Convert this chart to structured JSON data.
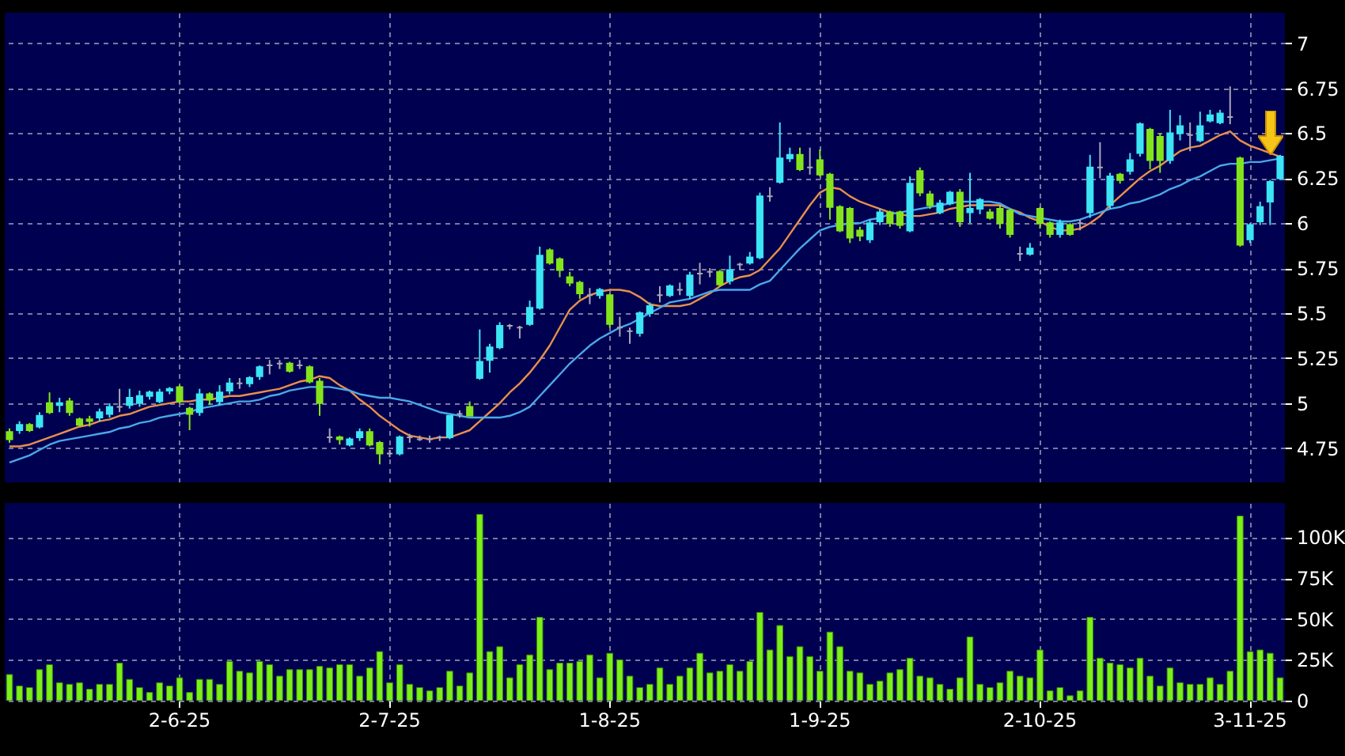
{
  "chart_data": [
    {
      "type": "candlestick",
      "categories": [
        null,
        null,
        null,
        null,
        null,
        null,
        null,
        null,
        null,
        null,
        null,
        null,
        null,
        null,
        null,
        null,
        null,
        null,
        null,
        null,
        null,
        null,
        null,
        null,
        null,
        null,
        null,
        null,
        null,
        null,
        null,
        null,
        null,
        null,
        null,
        null,
        null,
        null,
        null,
        null,
        null,
        null,
        null,
        null,
        null,
        null,
        null,
        null,
        null,
        null,
        null,
        null,
        null,
        null,
        null,
        null,
        null,
        null,
        null,
        null,
        null,
        null,
        null,
        null,
        null,
        null,
        null,
        null,
        null,
        null,
        null,
        null,
        null,
        null,
        null,
        null,
        null,
        null,
        null,
        null,
        null,
        null,
        null,
        null,
        null,
        null,
        null,
        null,
        null,
        null,
        null,
        null,
        null,
        null,
        null,
        null,
        null,
        null,
        null,
        null,
        null,
        null,
        null,
        null,
        null,
        null,
        null,
        null,
        null,
        null,
        null,
        null,
        null,
        null,
        null,
        null,
        null,
        null,
        null,
        null,
        null,
        null,
        null,
        null,
        null,
        null,
        null,
        null
      ],
      "ohlc": [
        [
          4.84,
          4.86,
          4.78,
          4.8
        ],
        [
          4.85,
          4.9,
          4.83,
          4.88
        ],
        [
          4.88,
          4.89,
          4.84,
          4.85
        ],
        [
          4.87,
          4.95,
          4.86,
          4.93
        ],
        [
          5,
          5.06,
          4.94,
          4.95
        ],
        [
          4.99,
          5.03,
          4.95,
          5
        ],
        [
          5.01,
          5.03,
          4.93,
          4.95
        ],
        [
          4.91,
          4.92,
          4.87,
          4.88
        ],
        [
          4.91,
          4.93,
          4.87,
          4.9
        ],
        [
          4.92,
          4.97,
          4.9,
          4.95
        ],
        [
          4.94,
          5,
          4.92,
          4.98
        ],
        [
          4.98,
          5.08,
          4.95,
          4.98
        ],
        [
          4.99,
          5.08,
          4.97,
          5.03
        ],
        [
          5,
          5.07,
          4.98,
          5.04
        ],
        [
          5.04,
          5.07,
          5.02,
          5.06
        ],
        [
          5.01,
          5.08,
          5,
          5.06
        ],
        [
          5.07,
          5.09,
          5.05,
          5.08
        ],
        [
          5.09,
          5.1,
          5,
          5.01
        ],
        [
          4.97,
          4.98,
          4.85,
          4.94
        ],
        [
          4.95,
          5.08,
          4.93,
          5.05
        ],
        [
          5.05,
          5.06,
          4.99,
          5.02
        ],
        [
          5.01,
          5.1,
          4.99,
          5.06
        ],
        [
          5.07,
          5.14,
          5.05,
          5.11
        ],
        [
          5.11,
          5.14,
          5.08,
          5.11
        ],
        [
          5.11,
          5.15,
          5.09,
          5.14
        ],
        [
          5.15,
          5.21,
          5.13,
          5.2
        ],
        [
          5.21,
          5.24,
          5.16,
          5.21
        ],
        [
          5.22,
          5.24,
          5.19,
          5.22
        ],
        [
          5.22,
          5.23,
          5.17,
          5.18
        ],
        [
          5.21,
          5.24,
          5.19,
          5.21
        ],
        [
          5.2,
          5.21,
          5.11,
          5.12
        ],
        [
          5.12,
          5.14,
          4.93,
          5
        ],
        [
          4.81,
          4.86,
          4.78,
          4.81
        ],
        [
          4.81,
          4.82,
          4.77,
          4.8
        ],
        [
          4.77,
          4.81,
          4.76,
          4.8
        ],
        [
          4.81,
          4.86,
          4.79,
          4.84
        ],
        [
          4.84,
          4.86,
          4.76,
          4.77
        ],
        [
          4.78,
          4.79,
          4.66,
          4.72
        ],
        [
          4.72,
          4.74,
          4.7,
          4.72
        ],
        [
          4.72,
          4.82,
          4.71,
          4.81
        ],
        [
          4.81,
          4.83,
          4.78,
          4.81
        ],
        [
          4.8,
          4.82,
          4.79,
          4.8
        ],
        [
          4.8,
          4.82,
          4.78,
          4.8
        ],
        [
          4.81,
          4.82,
          4.79,
          4.81
        ],
        [
          4.81,
          4.93,
          4.8,
          4.93
        ],
        [
          4.94,
          4.96,
          4.92,
          4.94
        ],
        [
          4.98,
          5.01,
          4.93,
          4.93
        ],
        [
          5.14,
          5.41,
          5.13,
          5.23
        ],
        [
          5.24,
          5.33,
          5.17,
          5.31
        ],
        [
          5.31,
          5.45,
          5.3,
          5.43
        ],
        [
          5.43,
          5.44,
          5.41,
          5.43
        ],
        [
          5.42,
          5.43,
          5.36,
          5.42
        ],
        [
          5.44,
          5.57,
          5.43,
          5.53
        ],
        [
          5.53,
          5.87,
          5.52,
          5.82
        ],
        [
          5.85,
          5.86,
          5.77,
          5.78
        ],
        [
          5.8,
          5.81,
          5.7,
          5.74
        ],
        [
          5.7,
          5.73,
          5.65,
          5.67
        ],
        [
          5.67,
          5.68,
          5.58,
          5.61
        ],
        [
          5.6,
          5.64,
          5.55,
          5.6
        ],
        [
          5.6,
          5.64,
          5.58,
          5.63
        ],
        [
          5.6,
          5.61,
          5.42,
          5.44
        ],
        [
          5.42,
          5.48,
          5.37,
          5.42
        ],
        [
          5.4,
          5.42,
          5.33,
          5.4
        ],
        [
          5.39,
          5.51,
          5.37,
          5.5
        ],
        [
          5.5,
          5.56,
          5.48,
          5.54
        ],
        [
          5.6,
          5.65,
          5.56,
          5.6
        ],
        [
          5.6,
          5.66,
          5.59,
          5.65
        ],
        [
          5.63,
          5.67,
          5.6,
          5.63
        ],
        [
          5.6,
          5.73,
          5.58,
          5.71
        ],
        [
          5.72,
          5.78,
          5.66,
          5.72
        ],
        [
          5.73,
          5.75,
          5.7,
          5.73
        ],
        [
          5.73,
          5.74,
          5.65,
          5.66
        ],
        [
          5.68,
          5.82,
          5.66,
          5.74
        ],
        [
          5.77,
          5.78,
          5.74,
          5.77
        ],
        [
          5.78,
          5.84,
          5.77,
          5.81
        ],
        [
          5.81,
          6.17,
          5.8,
          6.15
        ],
        [
          6.15,
          6.2,
          6.12,
          6.15
        ],
        [
          6.23,
          6.56,
          6.22,
          6.36
        ],
        [
          6.36,
          6.42,
          6.34,
          6.38
        ],
        [
          6.38,
          6.42,
          6.29,
          6.3
        ],
        [
          6.31,
          6.42,
          6.27,
          6.31
        ],
        [
          6.35,
          6.41,
          6.26,
          6.27
        ],
        [
          6.27,
          6.28,
          6.02,
          6.09
        ],
        [
          6.09,
          6.1,
          5.95,
          5.96
        ],
        [
          6.08,
          6.09,
          5.89,
          5.92
        ],
        [
          5.96,
          5.98,
          5.9,
          5.93
        ],
        [
          5.91,
          6.02,
          5.89,
          6
        ],
        [
          6.01,
          6.08,
          5.99,
          6.06
        ],
        [
          6.06,
          6.07,
          5.98,
          6
        ],
        [
          6.06,
          6.07,
          5.97,
          5.99
        ],
        [
          5.96,
          6.26,
          5.95,
          6.22
        ],
        [
          6.29,
          6.31,
          6.15,
          6.17
        ],
        [
          6.16,
          6.18,
          6.08,
          6.1
        ],
        [
          6.06,
          6.13,
          6.05,
          6.11
        ],
        [
          6.11,
          6.18,
          6.1,
          6.17
        ],
        [
          6.17,
          6.19,
          5.98,
          6.01
        ],
        [
          6.06,
          6.28,
          6,
          6.08
        ],
        [
          6.08,
          6.14,
          6.05,
          6.13
        ],
        [
          6.06,
          6.08,
          6.02,
          6.03
        ],
        [
          6.08,
          6.1,
          5.97,
          6
        ],
        [
          6.07,
          6.08,
          5.92,
          5.94
        ],
        [
          5.83,
          5.87,
          5.79,
          5.83
        ],
        [
          5.83,
          5.89,
          5.82,
          5.86
        ],
        [
          6.08,
          6.09,
          5.97,
          6
        ],
        [
          6,
          6.01,
          5.92,
          5.94
        ],
        [
          5.94,
          6.02,
          5.92,
          6
        ],
        [
          5.99,
          6,
          5.93,
          5.94
        ],
        [
          6,
          6.02,
          5.96,
          6
        ],
        [
          6.06,
          6.38,
          6.03,
          6.31
        ],
        [
          6.31,
          6.45,
          6.25,
          6.31
        ],
        [
          6.1,
          6.28,
          6.08,
          6.26
        ],
        [
          6.27,
          6.28,
          6.22,
          6.24
        ],
        [
          6.29,
          6.39,
          6.27,
          6.35
        ],
        [
          6.39,
          6.56,
          6.37,
          6.55
        ],
        [
          6.52,
          6.53,
          6.3,
          6.35
        ],
        [
          6.48,
          6.5,
          6.28,
          6.35
        ],
        [
          6.35,
          6.63,
          6.33,
          6.5
        ],
        [
          6.5,
          6.6,
          6.46,
          6.54
        ],
        [
          6.49,
          6.56,
          6.4,
          6.49
        ],
        [
          6.46,
          6.62,
          6.45,
          6.54
        ],
        [
          6.57,
          6.63,
          6.56,
          6.6
        ],
        [
          6.56,
          6.63,
          6.55,
          6.61
        ],
        [
          6.59,
          6.76,
          6.55,
          6.59
        ],
        [
          6.36,
          6.37,
          5.87,
          5.88
        ],
        [
          5.91,
          6,
          5.89,
          5.99
        ],
        [
          6.01,
          6.12,
          5.99,
          6.09
        ],
        [
          6.12,
          6.24,
          5.99,
          6.23
        ],
        [
          6.25,
          6.38,
          6.24,
          6.37
        ]
      ],
      "colors": [
        "#84e41c",
        "#3ce4f4",
        "#84e41c",
        "#3ce4f4",
        "#84e41c",
        "#3ce4f4",
        "#84e41c",
        "#84e41c",
        "#84e41c",
        "#3ce4f4",
        "#3ce4f4",
        "#a8a8b8",
        "#3ce4f4",
        "#3ce4f4",
        "#3ce4f4",
        "#3ce4f4",
        "#3ce4f4",
        "#84e41c",
        "#84e41c",
        "#3ce4f4",
        "#84e41c",
        "#3ce4f4",
        "#3ce4f4",
        "#a8a8b8",
        "#3ce4f4",
        "#3ce4f4",
        "#a8a8b8",
        "#a8a8b8",
        "#84e41c",
        "#a8a8b8",
        "#84e41c",
        "#84e41c",
        "#a8a8b8",
        "#84e41c",
        "#3ce4f4",
        "#3ce4f4",
        "#84e41c",
        "#84e41c",
        "#a8a8b8",
        "#3ce4f4",
        "#a8a8b8",
        "#a8a8b8",
        "#a8a8b8",
        "#a8a8b8",
        "#3ce4f4",
        "#a8a8b8",
        "#84e41c",
        "#3ce4f4",
        "#3ce4f4",
        "#3ce4f4",
        "#a8a8b8",
        "#a8a8b8",
        "#3ce4f4",
        "#3ce4f4",
        "#84e41c",
        "#84e41c",
        "#84e41c",
        "#84e41c",
        "#a8a8b8",
        "#3ce4f4",
        "#84e41c",
        "#a8a8b8",
        "#a8a8b8",
        "#3ce4f4",
        "#3ce4f4",
        "#a8a8b8",
        "#3ce4f4",
        "#a8a8b8",
        "#3ce4f4",
        "#a8a8b8",
        "#a8a8b8",
        "#84e41c",
        "#3ce4f4",
        "#a8a8b8",
        "#3ce4f4",
        "#3ce4f4",
        "#a8a8b8",
        "#3ce4f4",
        "#3ce4f4",
        "#84e41c",
        "#a8a8b8",
        "#84e41c",
        "#84e41c",
        "#84e41c",
        "#84e41c",
        "#84e41c",
        "#3ce4f4",
        "#3ce4f4",
        "#84e41c",
        "#84e41c",
        "#3ce4f4",
        "#84e41c",
        "#84e41c",
        "#3ce4f4",
        "#3ce4f4",
        "#84e41c",
        "#3ce4f4",
        "#3ce4f4",
        "#84e41c",
        "#84e41c",
        "#84e41c",
        "#a8a8b8",
        "#3ce4f4",
        "#84e41c",
        "#84e41c",
        "#3ce4f4",
        "#84e41c",
        "#a8a8b8",
        "#3ce4f4",
        "#a8a8b8",
        "#3ce4f4",
        "#84e41c",
        "#3ce4f4",
        "#3ce4f4",
        "#84e41c",
        "#84e41c",
        "#3ce4f4",
        "#3ce4f4",
        "#a8a8b8",
        "#3ce4f4",
        "#3ce4f4",
        "#3ce4f4",
        "#a8a8b8",
        "#84e41c",
        "#3ce4f4",
        "#3ce4f4",
        "#3ce4f4",
        "#3ce4f4"
      ],
      "series": [
        {
          "type": "line",
          "color": "#e8904a",
          "values": [
            4.76,
            4.76,
            4.77,
            4.79,
            4.81,
            4.83,
            4.85,
            4.87,
            4.88,
            4.9,
            4.91,
            4.93,
            4.94,
            4.96,
            4.98,
            4.99,
            5,
            5.01,
            5.01,
            5.02,
            5.02,
            5.03,
            5.04,
            5.04,
            5.05,
            5.06,
            5.07,
            5.08,
            5.1,
            5.12,
            5.13,
            5.15,
            5.14,
            5.1,
            5.07,
            5.02,
            4.98,
            4.93,
            4.89,
            4.85,
            4.82,
            4.81,
            4.8,
            4.81,
            4.81,
            4.83,
            4.85,
            4.9,
            4.95,
            5,
            5.06,
            5.11,
            5.17,
            5.24,
            5.32,
            5.42,
            5.52,
            5.57,
            5.6,
            5.62,
            5.63,
            5.63,
            5.62,
            5.59,
            5.55,
            5.54,
            5.54,
            5.54,
            5.55,
            5.58,
            5.61,
            5.65,
            5.68,
            5.7,
            5.71,
            5.74,
            5.8,
            5.86,
            5.94,
            6.02,
            6.1,
            6.17,
            6.2,
            6.19,
            6.15,
            6.12,
            6.1,
            6.08,
            6.06,
            6.05,
            6.04,
            6.04,
            6.05,
            6.06,
            6.08,
            6.09,
            6.1,
            6.1,
            6.1,
            6.1,
            6.08,
            6.06,
            6.03,
            6.01,
            5.98,
            5.96,
            5.96,
            5.97,
            6,
            6.04,
            6.1,
            6.15,
            6.2,
            6.25,
            6.29,
            6.32,
            6.36,
            6.4,
            6.42,
            6.43,
            6.46,
            6.49,
            6.51,
            6.46,
            6.43,
            6.41,
            6.39,
            6.37
          ]
        },
        {
          "type": "line",
          "color": "#4aa8e8",
          "values": [
            4.67,
            4.69,
            4.71,
            4.74,
            4.77,
            4.79,
            4.8,
            4.81,
            4.82,
            4.83,
            4.84,
            4.86,
            4.87,
            4.89,
            4.9,
            4.92,
            4.93,
            4.94,
            4.95,
            4.97,
            4.98,
            4.99,
            5,
            5.01,
            5.01,
            5.02,
            5.04,
            5.05,
            5.07,
            5.08,
            5.09,
            5.09,
            5.09,
            5.08,
            5.07,
            5.05,
            5.04,
            5.03,
            5.03,
            5.02,
            5.01,
            4.99,
            4.97,
            4.95,
            4.94,
            4.93,
            4.92,
            4.92,
            4.92,
            4.92,
            4.93,
            4.95,
            4.98,
            5.04,
            5.1,
            5.16,
            5.22,
            5.27,
            5.32,
            5.36,
            5.39,
            5.42,
            5.44,
            5.47,
            5.5,
            5.53,
            5.56,
            5.57,
            5.58,
            5.6,
            5.62,
            5.63,
            5.63,
            5.63,
            5.63,
            5.66,
            5.68,
            5.74,
            5.8,
            5.86,
            5.91,
            5.96,
            5.98,
            5.99,
            6,
            6,
            6.02,
            6.03,
            6.05,
            6.06,
            6.07,
            6.08,
            6.09,
            6.1,
            6.11,
            6.12,
            6.12,
            6.12,
            6.12,
            6.11,
            6.08,
            6.05,
            6.04,
            6.03,
            6.02,
            6.01,
            6.01,
            6.02,
            6.04,
            6.06,
            6.08,
            6.09,
            6.11,
            6.12,
            6.14,
            6.16,
            6.19,
            6.21,
            6.24,
            6.26,
            6.29,
            6.32,
            6.33,
            6.33,
            6.34,
            6.34,
            6.35,
            6.36
          ]
        }
      ],
      "ylim": [
        4.56,
        7.17
      ],
      "yticks": [
        4.75,
        5,
        5.25,
        5.5,
        5.75,
        6,
        6.25,
        6.5,
        6.75,
        7
      ],
      "grid": true,
      "tick_labels": "y"
    },
    {
      "type": "bar",
      "categories": [
        null,
        null,
        null,
        null,
        null,
        null,
        null,
        null,
        null,
        null,
        null,
        null,
        null,
        null,
        null,
        null,
        null,
        "2-6-25",
        null,
        null,
        null,
        null,
        null,
        null,
        null,
        null,
        null,
        null,
        null,
        null,
        null,
        null,
        null,
        null,
        null,
        null,
        null,
        null,
        "2-7-25",
        null,
        null,
        null,
        null,
        null,
        null,
        null,
        null,
        null,
        null,
        null,
        null,
        null,
        null,
        null,
        null,
        null,
        null,
        null,
        null,
        null,
        "1-8-25",
        null,
        null,
        null,
        null,
        null,
        null,
        null,
        null,
        null,
        null,
        null,
        null,
        null,
        null,
        null,
        null,
        null,
        null,
        null,
        null,
        "1-9-25",
        null,
        null,
        null,
        null,
        null,
        null,
        null,
        null,
        null,
        null,
        null,
        null,
        null,
        null,
        null,
        null,
        null,
        null,
        null,
        null,
        null,
        "2-10-25",
        null,
        null,
        null,
        null,
        null,
        null,
        null,
        null,
        null,
        null,
        null,
        null,
        null,
        null,
        null,
        null,
        null,
        null,
        null,
        null,
        "3-11-25",
        null,
        null,
        null
      ],
      "values": [
        16000,
        9000,
        8000,
        19000,
        22000,
        11000,
        10000,
        11000,
        7000,
        10000,
        10000,
        23000,
        13000,
        8000,
        5000,
        11000,
        9000,
        14000,
        5000,
        13000,
        13000,
        10000,
        24000,
        18000,
        17000,
        24000,
        22000,
        15000,
        19000,
        19000,
        19000,
        21000,
        20000,
        22000,
        22000,
        15000,
        20000,
        30000,
        11000,
        22000,
        10000,
        8000,
        6000,
        8000,
        18000,
        9000,
        17000,
        114000,
        30000,
        33000,
        14000,
        22000,
        28000,
        51000,
        19000,
        23000,
        23000,
        24000,
        28000,
        14000,
        29000,
        25000,
        15000,
        8000,
        10000,
        20000,
        10000,
        15000,
        20000,
        29000,
        17000,
        18000,
        22000,
        18000,
        24000,
        54000,
        31000,
        46000,
        27000,
        33000,
        27000,
        18000,
        42000,
        33000,
        18000,
        17000,
        10000,
        12000,
        17000,
        19000,
        26000,
        15000,
        14000,
        10000,
        7000,
        14000,
        39000,
        10000,
        8000,
        11000,
        18000,
        15000,
        14000,
        31000,
        6000,
        8000,
        3000,
        6000,
        51000,
        26000,
        23000,
        22000,
        20000,
        26000,
        15000,
        9000,
        20000,
        11000,
        10000,
        10000,
        14000,
        10000,
        18000,
        113000,
        30000,
        31000,
        29000,
        14000
      ],
      "color": "#7cf018",
      "ylim": [
        0,
        121000
      ],
      "yticks": [
        0,
        {
          "value": 25000,
          "label": "25K"
        },
        {
          "value": 50000,
          "label": "50K"
        },
        {
          "value": 75000,
          "label": "75K"
        },
        {
          "value": 100000,
          "label": "100K"
        }
      ],
      "grid": true
    }
  ]
}
